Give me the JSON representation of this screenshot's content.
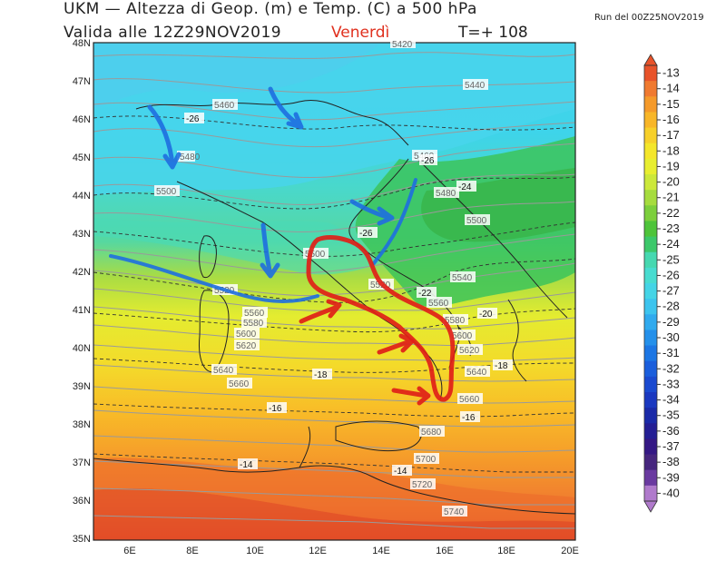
{
  "header": {
    "title": "UKM — Altezza di Geop. (m) e Temp. (C) a 500 hPa",
    "valid": "Valida alle 12Z29NOV2019",
    "day": "Venerdì",
    "tstep": "T=+ 108",
    "run": "Run del 00Z25NOV2019"
  },
  "axes": {
    "lat_labels": [
      "48N",
      "47N",
      "46N",
      "45N",
      "44N",
      "43N",
      "42N",
      "41N",
      "40N",
      "39N",
      "38N",
      "37N",
      "36N",
      "35N"
    ],
    "lon_labels": [
      "6E",
      "8E",
      "10E",
      "12E",
      "14E",
      "16E",
      "18E",
      "20E"
    ]
  },
  "colorbar": {
    "labels": [
      "-13",
      "-14",
      "-15",
      "-16",
      "-17",
      "-18",
      "-19",
      "-20",
      "-21",
      "-22",
      "-23",
      "-24",
      "-25",
      "-26",
      "-27",
      "-28",
      "-29",
      "-30",
      "-31",
      "-32",
      "-33",
      "-34",
      "-35",
      "-36",
      "-37",
      "-38",
      "-39",
      "-40"
    ],
    "colors": [
      "#e8532a",
      "#f07a30",
      "#f59a2a",
      "#f8b628",
      "#f7d02a",
      "#f4e62a",
      "#e8ee30",
      "#cce83a",
      "#a6dc3e",
      "#7ccf3c",
      "#4ec43a",
      "#3cc86a",
      "#46d8b0",
      "#48dcd0",
      "#44d4e6",
      "#3cc4ee",
      "#30aaee",
      "#2490ea",
      "#1c76e4",
      "#1a5edc",
      "#1a4ad0",
      "#1a38c0",
      "#1a2aa8",
      "#241e94",
      "#341884",
      "#46267e",
      "#6a3aa0",
      "#b07acc"
    ]
  },
  "map": {
    "height_labels": [
      "5460",
      "5440",
      "5480",
      "5500",
      "5480",
      "5500",
      "5460",
      "5500",
      "5520",
      "5520",
      "5540",
      "5560",
      "5560",
      "5580",
      "5580",
      "5600",
      "5600",
      "5620",
      "5620",
      "5640",
      "5640",
      "5660",
      "5660",
      "5680",
      "5700",
      "5720",
      "5740",
      "5420"
    ],
    "temp_labels": [
      "-26",
      "-24",
      "-26",
      "-26",
      "-22",
      "-20",
      "-18",
      "-18",
      "-16",
      "-16",
      "-14",
      "-14"
    ]
  }
}
